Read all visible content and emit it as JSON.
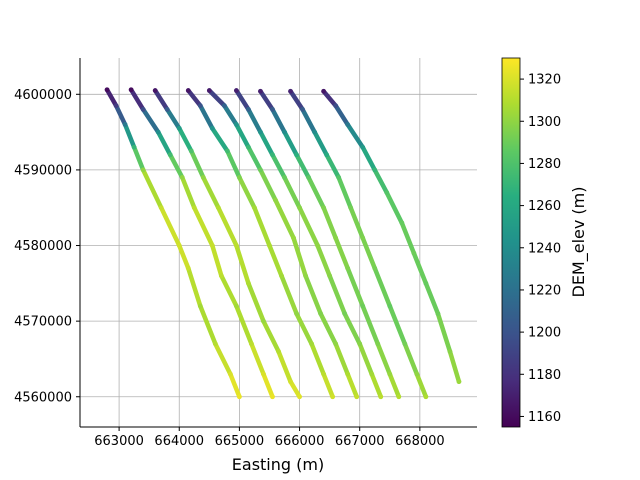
{
  "chart_data": {
    "type": "scatter",
    "xlabel": "Easting (m)",
    "ylabel": "",
    "xlim": [
      662350,
      668950
    ],
    "ylim": [
      4556000,
      4604800
    ],
    "x_ticks": [
      663000,
      664000,
      665000,
      666000,
      667000,
      668000
    ],
    "y_ticks": [
      4560000,
      4570000,
      4580000,
      4590000,
      4600000
    ],
    "grid": true,
    "colorbar": {
      "label": "DEM_elev (m)",
      "range": [
        1155,
        1330
      ],
      "ticks": [
        1160,
        1180,
        1200,
        1220,
        1240,
        1260,
        1280,
        1300,
        1320
      ],
      "colormap": "viridis"
    },
    "series": [
      {
        "points": [
          [
            662800,
            4600600,
            1160
          ],
          [
            662950,
            4598500,
            1185
          ],
          [
            663100,
            4596000,
            1225
          ],
          [
            663250,
            4593000,
            1270
          ],
          [
            663400,
            4590000,
            1300
          ],
          [
            663700,
            4585000,
            1315
          ],
          [
            664000,
            4580000,
            1318
          ],
          [
            664150,
            4577000,
            1316
          ],
          [
            664350,
            4572000,
            1305
          ],
          [
            664600,
            4567000,
            1310
          ],
          [
            664850,
            4563000,
            1320
          ],
          [
            665000,
            4560000,
            1325
          ]
        ]
      },
      {
        "points": [
          [
            663200,
            4600600,
            1160
          ],
          [
            663400,
            4598000,
            1195
          ],
          [
            663650,
            4595000,
            1240
          ],
          [
            663850,
            4592000,
            1275
          ],
          [
            664050,
            4589000,
            1300
          ],
          [
            664250,
            4585000,
            1312
          ],
          [
            664550,
            4580000,
            1315
          ],
          [
            664700,
            4576000,
            1312
          ],
          [
            664950,
            4572000,
            1305
          ],
          [
            665200,
            4567000,
            1312
          ],
          [
            665400,
            4563000,
            1320
          ],
          [
            665550,
            4560000,
            1325
          ]
        ]
      },
      {
        "points": [
          [
            663600,
            4600500,
            1165
          ],
          [
            663800,
            4598000,
            1205
          ],
          [
            664000,
            4595500,
            1250
          ],
          [
            664200,
            4592500,
            1280
          ],
          [
            664400,
            4589000,
            1300
          ],
          [
            664650,
            4585000,
            1310
          ],
          [
            664950,
            4580000,
            1312
          ],
          [
            665150,
            4575000,
            1308
          ],
          [
            665400,
            4570000,
            1302
          ],
          [
            665650,
            4566000,
            1310
          ],
          [
            665850,
            4562000,
            1318
          ],
          [
            666000,
            4560000,
            1322
          ]
        ]
      },
      {
        "points": [
          [
            664150,
            4600500,
            1165
          ],
          [
            664350,
            4598500,
            1200
          ],
          [
            664550,
            4595500,
            1245
          ],
          [
            664800,
            4592500,
            1275
          ],
          [
            665000,
            4589000,
            1295
          ],
          [
            665250,
            4585000,
            1305
          ],
          [
            665500,
            4580000,
            1308
          ],
          [
            665700,
            4576000,
            1305
          ],
          [
            665950,
            4571000,
            1300
          ],
          [
            666200,
            4567000,
            1305
          ],
          [
            666400,
            4563000,
            1312
          ],
          [
            666550,
            4560000,
            1318
          ]
        ]
      },
      {
        "points": [
          [
            664500,
            4600500,
            1168
          ],
          [
            664750,
            4598500,
            1210
          ],
          [
            664950,
            4596000,
            1245
          ],
          [
            665150,
            4593000,
            1272
          ],
          [
            665350,
            4590000,
            1290
          ],
          [
            665600,
            4586000,
            1300
          ],
          [
            665900,
            4581000,
            1303
          ],
          [
            666100,
            4576000,
            1300
          ],
          [
            666350,
            4571000,
            1296
          ],
          [
            666600,
            4567000,
            1300
          ],
          [
            666800,
            4563000,
            1308
          ],
          [
            666950,
            4560000,
            1315
          ]
        ]
      },
      {
        "points": [
          [
            664950,
            4600500,
            1170
          ],
          [
            665150,
            4598000,
            1210
          ],
          [
            665350,
            4595000,
            1245
          ],
          [
            665550,
            4592000,
            1270
          ],
          [
            665750,
            4589000,
            1288
          ],
          [
            666000,
            4585000,
            1298
          ],
          [
            666300,
            4580000,
            1300
          ],
          [
            666500,
            4576000,
            1298
          ],
          [
            666750,
            4571000,
            1292
          ],
          [
            667000,
            4567000,
            1298
          ],
          [
            667200,
            4563000,
            1305
          ],
          [
            667350,
            4560000,
            1312
          ]
        ]
      },
      {
        "points": [
          [
            665350,
            4600400,
            1170
          ],
          [
            665550,
            4598000,
            1205
          ],
          [
            665750,
            4595000,
            1240
          ],
          [
            665950,
            4592000,
            1265
          ],
          [
            666150,
            4589000,
            1285
          ],
          [
            666400,
            4585000,
            1295
          ],
          [
            666600,
            4581000,
            1298
          ],
          [
            666800,
            4577000,
            1296
          ],
          [
            667050,
            4572000,
            1290
          ],
          [
            667300,
            4567000,
            1295
          ],
          [
            667500,
            4563000,
            1302
          ],
          [
            667650,
            4560000,
            1310
          ]
        ]
      },
      {
        "points": [
          [
            665850,
            4600400,
            1172
          ],
          [
            666050,
            4598000,
            1205
          ],
          [
            666250,
            4595000,
            1240
          ],
          [
            666450,
            4592000,
            1262
          ],
          [
            666650,
            4589000,
            1282
          ],
          [
            666850,
            4585000,
            1292
          ],
          [
            667050,
            4581000,
            1295
          ],
          [
            667250,
            4577000,
            1293
          ],
          [
            667500,
            4572000,
            1287
          ],
          [
            667750,
            4567000,
            1292
          ],
          [
            667950,
            4563000,
            1300
          ],
          [
            668100,
            4560000,
            1308
          ]
        ]
      },
      {
        "points": [
          [
            666400,
            4600400,
            1165
          ],
          [
            666600,
            4598500,
            1195
          ],
          [
            666800,
            4596000,
            1225
          ],
          [
            667050,
            4593000,
            1250
          ],
          [
            667250,
            4590000,
            1270
          ],
          [
            667450,
            4587000,
            1282
          ],
          [
            667700,
            4583000,
            1288
          ],
          [
            667900,
            4579000,
            1290
          ],
          [
            668100,
            4575000,
            1288
          ],
          [
            668300,
            4571000,
            1290
          ],
          [
            668500,
            4566000,
            1298
          ],
          [
            668650,
            4562000,
            1303
          ]
        ]
      }
    ]
  }
}
